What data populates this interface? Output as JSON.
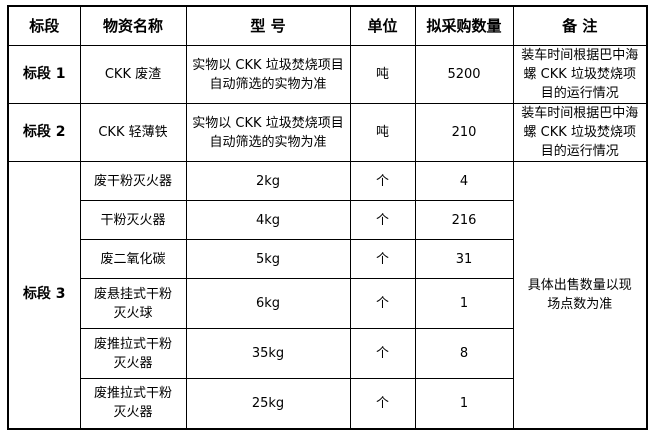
{
  "headers": [
    "标段",
    "物资名称",
    "型 号",
    "单位",
    "拟采购数量",
    "备 注"
  ],
  "rows": [
    {
      "segment": "标段 1",
      "name": "CKK 废渣",
      "model": "实物以 CKK 垃圾焚烧项目自动筛选的实物为准",
      "unit": "吨",
      "quantity": "5200",
      "remark": "装车时间根据巴中海螺 CKK 垃圾焚烧项目的运行情况"
    },
    {
      "segment": "标段 2",
      "name": "CKK 轻薄铁",
      "model": "实物以 CKK 垃圾焚烧项目自动筛选的实物为准",
      "unit": "吨",
      "quantity": "210",
      "remark": "装车时间根据巴中海螺 CKK 垃圾焚烧项目的运行情况"
    }
  ],
  "segment3": {
    "segment": "标段 3",
    "remark": "具体出售数量以现场点数为准",
    "items": [
      {
        "name": "废干粉灭火器",
        "model": "2kg",
        "unit": "个",
        "quantity": "4"
      },
      {
        "name": "干粉灭火器",
        "model": "4kg",
        "unit": "个",
        "quantity": "216"
      },
      {
        "name": "废二氧化碳",
        "model": "5kg",
        "unit": "个",
        "quantity": "31"
      },
      {
        "name": "废悬挂式干粉灭火球",
        "model": "6kg",
        "unit": "个",
        "quantity": "1"
      },
      {
        "name": "废推拉式干粉灭火器",
        "model": "35kg",
        "unit": "个",
        "quantity": "8"
      },
      {
        "name": "废推拉式干粉灭火器",
        "model": "25kg",
        "unit": "个",
        "quantity": "1"
      }
    ]
  }
}
